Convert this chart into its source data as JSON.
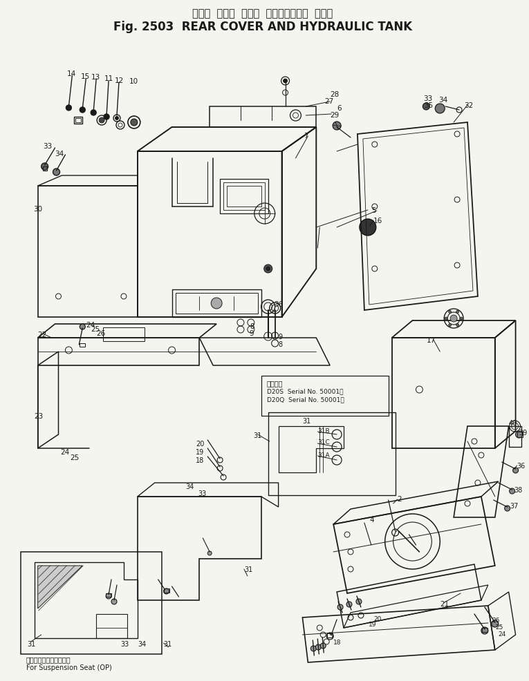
{
  "title_japanese": "リヤー  カバー  および  ハイドロリック  タンク",
  "title_english": "Fig. 2503  REAR COVER AND HYDRAULIC TANK",
  "bg_color": "#f5f5f0",
  "line_color": "#1a1a1a",
  "caption_japanese": "サスペンションシート用",
  "caption_english": "For Suspension Seat (OP)",
  "fig_width": 7.65,
  "fig_height": 9.87,
  "dpi": 100
}
